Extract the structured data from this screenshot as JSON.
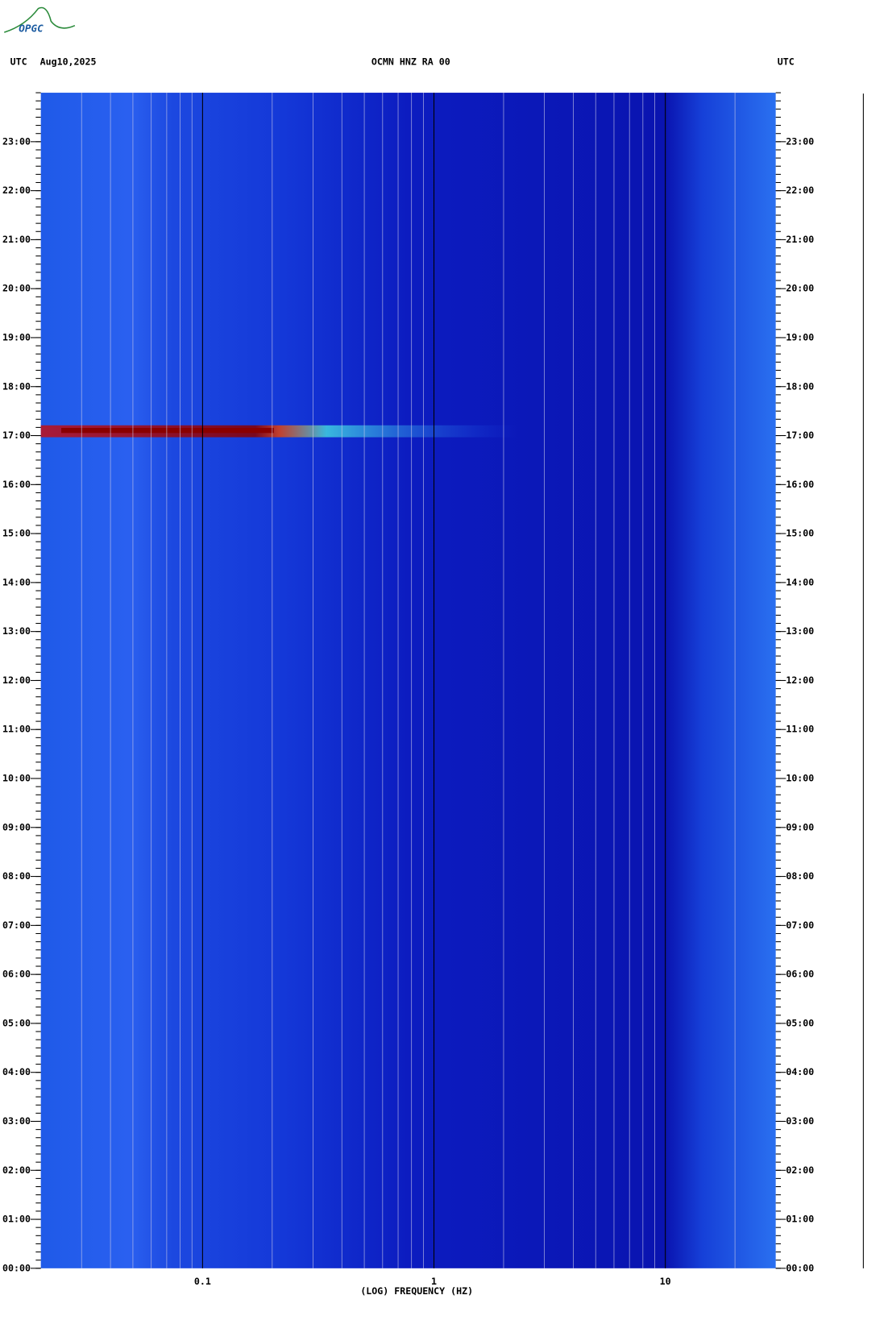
{
  "logo": "OPGC",
  "chart_data": {
    "type": "spectrogram",
    "header_left": "UTC",
    "date": "Aug10,2025",
    "title": "OCMN HNZ RA 00",
    "header_right": "UTC",
    "xlabel": "(LOG) FREQUENCY (HZ)",
    "xscale": "log",
    "xlim": [
      0.02,
      30
    ],
    "xticks": [
      0.1,
      1,
      10
    ],
    "ylim": [
      0,
      24
    ],
    "yticks": [
      {
        "value": 0,
        "label": "00:00"
      },
      {
        "value": 1,
        "label": "01:00"
      },
      {
        "value": 2,
        "label": "02:00"
      },
      {
        "value": 3,
        "label": "03:00"
      },
      {
        "value": 4,
        "label": "04:00"
      },
      {
        "value": 5,
        "label": "05:00"
      },
      {
        "value": 6,
        "label": "06:00"
      },
      {
        "value": 7,
        "label": "07:00"
      },
      {
        "value": 8,
        "label": "08:00"
      },
      {
        "value": 9,
        "label": "09:00"
      },
      {
        "value": 10,
        "label": "10:00"
      },
      {
        "value": 11,
        "label": "11:00"
      },
      {
        "value": 12,
        "label": "12:00"
      },
      {
        "value": 13,
        "label": "13:00"
      },
      {
        "value": 14,
        "label": "14:00"
      },
      {
        "value": 15,
        "label": "15:00"
      },
      {
        "value": 16,
        "label": "16:00"
      },
      {
        "value": 17,
        "label": "17:00"
      },
      {
        "value": 18,
        "label": "18:00"
      },
      {
        "value": 19,
        "label": "19:00"
      },
      {
        "value": 20,
        "label": "20:00"
      },
      {
        "value": 21,
        "label": "21:00"
      },
      {
        "value": 22,
        "label": "22:00"
      },
      {
        "value": 23,
        "label": "23:00"
      }
    ]
  }
}
